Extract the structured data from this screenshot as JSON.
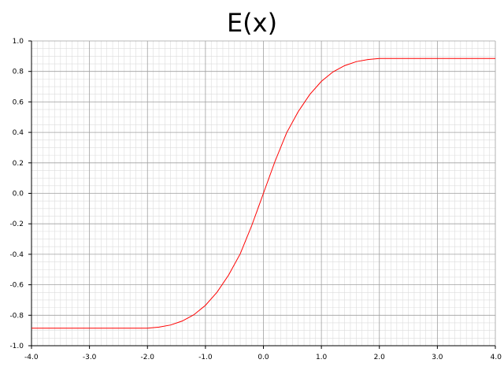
{
  "chart_data": {
    "type": "line",
    "title": "E(x)",
    "xlabel": "",
    "ylabel": "",
    "xlim": [
      -4.0,
      4.0
    ],
    "ylim": [
      -1.0,
      1.0
    ],
    "x_ticks": [
      "-4.0",
      "-3.0",
      "-2.0",
      "-1.0",
      "0.0",
      "1.0",
      "2.0",
      "3.0",
      "4.0"
    ],
    "y_ticks": [
      "1.0",
      "0.8",
      "0.6",
      "0.4",
      "0.2",
      "0.0",
      "-0.2",
      "-0.4",
      "-0.6",
      "-0.8",
      "-1.0"
    ],
    "grid": true,
    "legend": "none",
    "series": [
      {
        "color": "#ff0000",
        "x": [
          -4.0,
          -3.0,
          -2.0,
          -1.8,
          -1.6,
          -1.4,
          -1.2,
          -1.0,
          -0.8,
          -0.6,
          -0.4,
          -0.2,
          0.0,
          0.2,
          0.4,
          0.6,
          0.8,
          1.0,
          1.2,
          1.4,
          1.6,
          1.8,
          2.0,
          3.0,
          4.0
        ],
        "y": [
          -0.885,
          -0.885,
          -0.885,
          -0.878,
          -0.864,
          -0.838,
          -0.797,
          -0.735,
          -0.649,
          -0.536,
          -0.397,
          -0.21,
          0.0,
          0.21,
          0.397,
          0.536,
          0.649,
          0.735,
          0.797,
          0.838,
          0.864,
          0.878,
          0.885,
          0.885,
          0.885
        ]
      }
    ]
  }
}
